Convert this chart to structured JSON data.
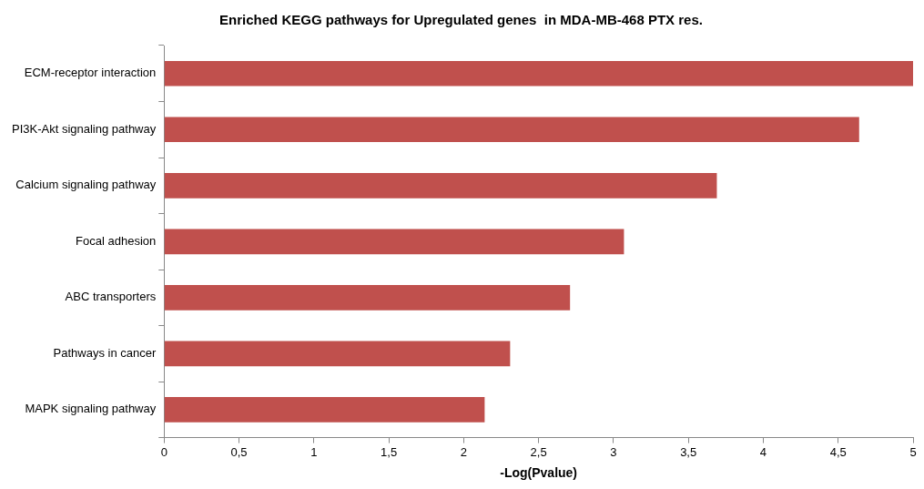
{
  "chart_data": {
    "type": "bar",
    "orientation": "horizontal",
    "title": "Enriched KEGG pathways for Upregulated genes  in MDA-MB-468 PTX res.",
    "xlabel": "-Log(Pvalue)",
    "categories": [
      "ECM-receptor interaction",
      "PI3K-Akt signaling pathway",
      "Calcium signaling pathway",
      "Focal adhesion",
      "ABC transporters",
      "Pathways in cancer",
      "MAPK signaling pathway"
    ],
    "values": [
      5.0,
      4.64,
      3.69,
      3.07,
      2.71,
      2.31,
      2.14
    ],
    "color": "#c0504d",
    "xlim": [
      0,
      5
    ],
    "xticks": [
      0,
      {
        "value": 0.5,
        "label": "0,5"
      },
      1,
      {
        "value": 1.5,
        "label": "1,5"
      },
      2,
      {
        "value": 2.5,
        "label": "2,5"
      },
      3,
      {
        "value": 3.5,
        "label": "3,5"
      },
      4,
      {
        "value": 4.5,
        "label": "4,5"
      },
      5
    ],
    "grid": false,
    "legend": false
  }
}
